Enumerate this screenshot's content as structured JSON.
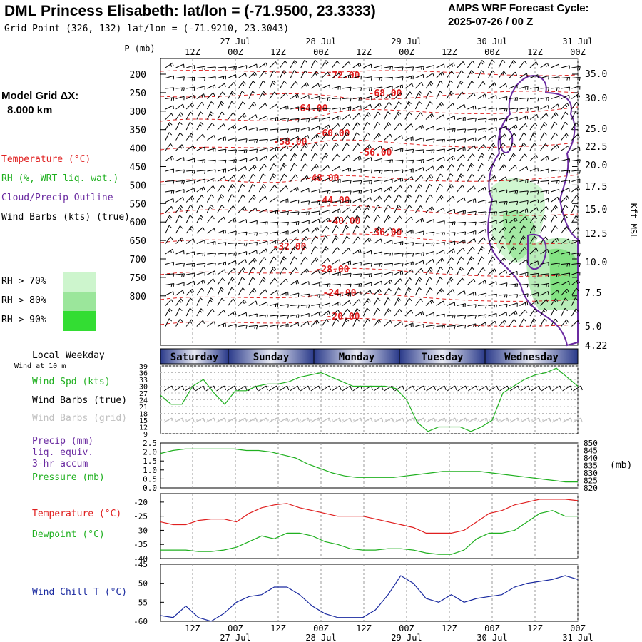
{
  "header": {
    "title": "DML Princess Elisabeth:  lat/lon = (-71.9500, 23.3333)",
    "grid_point": "Grid Point (326, 132) lat/lon = (-71.9210, 23.3043)",
    "cycle_line1": "AMPS WRF Forecast Cycle:",
    "cycle_line2": "2025-07-26 / 00  Z"
  },
  "left_panel": {
    "model_grid_label": "Model Grid ΔX:",
    "model_grid_value": "8.000 km",
    "legend_temperature": "Temperature (°C)",
    "legend_rh": "RH (%, WRT liq. wat.)",
    "legend_cloud": "Cloud/Precip Outline",
    "legend_wind": "Wind Barbs (kts) (true)",
    "rh_70": "RH > 70%",
    "rh_80": "RH > 80%",
    "rh_90": "RH > 90%",
    "local_weekday": "Local Weekday",
    "wind_10m": "Wind at 10 m",
    "wind_spd": "Wind Spd (kts)",
    "wind_barbs_true": "Wind Barbs (true)",
    "wind_barbs_grid": "Wind Barbs (grid)",
    "precip_l1": "Precip (mm)",
    "precip_l2": "liq. equiv.",
    "precip_l3": "3-hr accum",
    "pressure": "Pressure (mb)",
    "temperature": "Temperature (°C)",
    "dewpoint": "Dewpoint (°C)",
    "wind_chill": "Wind Chill T (°C)"
  },
  "colors": {
    "temperature": "#e02020",
    "rh": "#20b020",
    "cloud": "#6a2aa0",
    "wind_chill": "#1a2aa0",
    "rh70": "#cdf5cd",
    "rh80": "#9be69b",
    "rh90": "#33dd33",
    "day_band": "#2a3a8a"
  },
  "time_axis": {
    "top_hours": [
      "12Z",
      "00Z",
      "12Z",
      "00Z",
      "12Z",
      "00Z",
      "12Z",
      "00Z",
      "12Z",
      "00Z"
    ],
    "top_dates": [
      {
        "label": "27 Jul",
        "index": 1
      },
      {
        "label": "28 Jul",
        "index": 3
      },
      {
        "label": "29 Jul",
        "index": 5
      },
      {
        "label": "30 Jul",
        "index": 7
      },
      {
        "label": "31 Jul",
        "index": 9
      }
    ],
    "weekdays": [
      "Saturday",
      "Sunday",
      "Monday",
      "Tuesday",
      "Wednesday"
    ]
  },
  "chart_data": [
    {
      "type": "heatmap",
      "ylabel_left": "P (mb)",
      "ylabel_right": "Kft MSL",
      "pressure_ticks": [
        200,
        250,
        300,
        350,
        400,
        450,
        500,
        550,
        600,
        650,
        700,
        750,
        800
      ],
      "kft_ticks": [
        "35.0",
        "30.0",
        "25.0",
        "22.5",
        "20.0",
        "17.5",
        "15.0",
        "12.5",
        "10.0",
        "7.5",
        "5.0",
        "4.22"
      ],
      "temperature_labels": [
        "-72.00",
        "-68.00",
        "-64.00",
        "-60.00",
        "-58.00",
        "-56.00",
        "-48.00",
        "-44.00",
        "-40.00",
        "-36.00",
        "-32.00",
        "-28.00",
        "-24.00",
        "-20.00"
      ]
    },
    {
      "type": "line",
      "y_ticks": [
        9,
        12,
        15,
        18,
        21,
        24,
        27,
        30,
        33,
        36,
        39
      ],
      "series": [
        {
          "name": "Wind Spd (kts)",
          "values": [
            26,
            22,
            22,
            30,
            33,
            27,
            22,
            28,
            28,
            30,
            31,
            31,
            32,
            34,
            35,
            36,
            34,
            32,
            30,
            30,
            30,
            30,
            29,
            24,
            14,
            10,
            12,
            12,
            12,
            10,
            12,
            15,
            27,
            30,
            33,
            35,
            36,
            38,
            34,
            30
          ]
        }
      ]
    },
    {
      "type": "line",
      "y_ticks_left": [
        "0.0",
        "0.5",
        "1.0",
        "1.5",
        "2.0",
        "2.5"
      ],
      "y_ticks_right": [
        "820",
        "825",
        "830",
        "835",
        "840",
        "845",
        "850"
      ],
      "right_label": "(mb)",
      "series": [
        {
          "name": "Pressure (mb)",
          "values": [
            843,
            845,
            846,
            846,
            846,
            846,
            846,
            845,
            845,
            844,
            842,
            840,
            836,
            833,
            830,
            828,
            827,
            827,
            827,
            827,
            828,
            829,
            830,
            831,
            831,
            831,
            831,
            830,
            829,
            828,
            827,
            826,
            825,
            824,
            824
          ]
        }
      ]
    },
    {
      "type": "line",
      "y_ticks": [
        -40,
        -35,
        -30,
        -25,
        -20
      ],
      "series": [
        {
          "name": "Temperature (°C)",
          "values": [
            -27,
            -28,
            -28,
            -26.5,
            -26,
            -26,
            -27,
            -24,
            -22,
            -21,
            -20.5,
            -22,
            -23,
            -24,
            -25,
            -25,
            -25,
            -26,
            -27,
            -28,
            -29,
            -31,
            -31,
            -31,
            -30,
            -27,
            -24,
            -23,
            -21,
            -20,
            -19,
            -19,
            -19,
            -19.5
          ]
        },
        {
          "name": "Dewpoint (°C)",
          "values": [
            -37,
            -37,
            -37,
            -37.5,
            -37.5,
            -37,
            -36,
            -34,
            -32,
            -33,
            -31,
            -31,
            -32,
            -34,
            -35,
            -36.5,
            -37,
            -37,
            -36.5,
            -36.5,
            -37,
            -38,
            -38.5,
            -38.5,
            -37,
            -33,
            -31,
            -31,
            -30,
            -27,
            -24,
            -23,
            -25,
            -25
          ]
        }
      ]
    },
    {
      "type": "line",
      "y_ticks": [
        -60,
        -55,
        -50,
        -45
      ],
      "series": [
        {
          "name": "Wind Chill T (°C)",
          "values": [
            -58.5,
            -59,
            -56,
            -59,
            -60,
            -58,
            -55,
            -53.5,
            -53,
            -51,
            -51,
            -53,
            -56,
            -58,
            -59,
            -59,
            -59,
            -57,
            -53,
            -48,
            -50,
            -54,
            -55,
            -53,
            -55,
            -54,
            -53.5,
            -53,
            -51,
            -50,
            -49.5,
            -49,
            -48,
            -49
          ]
        }
      ]
    }
  ],
  "bottom_axis": {
    "hours": [
      "12Z",
      "00Z",
      "12Z",
      "00Z",
      "12Z",
      "00Z",
      "12Z",
      "00Z",
      "12Z",
      "00Z"
    ],
    "dates": [
      {
        "label": "27 Jul",
        "index": 1
      },
      {
        "label": "28 Jul",
        "index": 3
      },
      {
        "label": "29 Jul",
        "index": 5
      },
      {
        "label": "30 Jul",
        "index": 7
      },
      {
        "label": "31 Jul",
        "index": 9
      }
    ]
  }
}
